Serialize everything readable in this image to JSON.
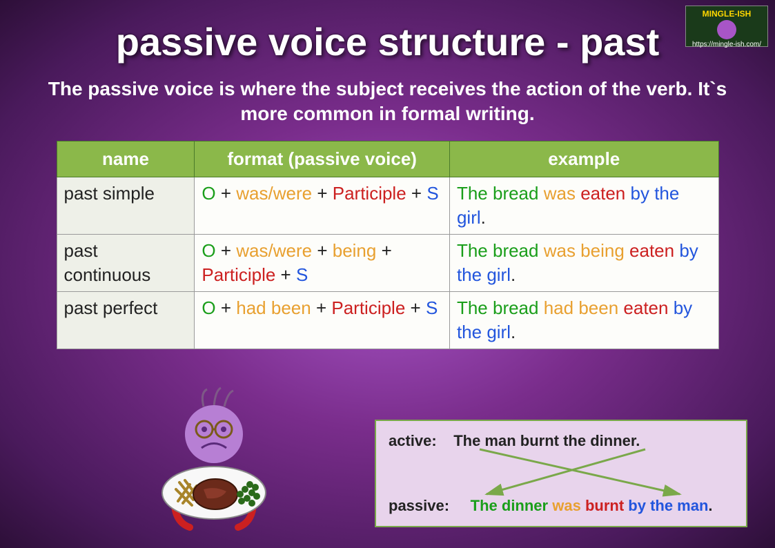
{
  "logo": {
    "brand": "MINGLE-ISH",
    "url": "https://mingle-ish.com/"
  },
  "title": "passive voice structure - past",
  "subtitle": "The passive voice is where the subject receives the action of the verb. It`s more common in formal writing.",
  "table": {
    "headers": [
      "name",
      "format (passive voice)",
      "example"
    ],
    "rows": [
      {
        "name": "past simple",
        "format": [
          {
            "t": "O",
            "c": "c-green"
          },
          {
            "t": " + ",
            "c": "c-black"
          },
          {
            "t": "was/were",
            "c": "c-orange"
          },
          {
            "t": " + ",
            "c": "c-black"
          },
          {
            "t": "Participle",
            "c": "c-red"
          },
          {
            "t": " + ",
            "c": "c-black"
          },
          {
            "t": "S",
            "c": "c-blue"
          }
        ],
        "example": [
          {
            "t": "The bread",
            "c": "c-green"
          },
          {
            "t": " ",
            "c": "c-black"
          },
          {
            "t": "was",
            "c": "c-orange"
          },
          {
            "t": " ",
            "c": "c-black"
          },
          {
            "t": "eaten",
            "c": "c-red"
          },
          {
            "t": " ",
            "c": "c-black"
          },
          {
            "t": "by the girl",
            "c": "c-blue"
          },
          {
            "t": ".",
            "c": "c-black"
          }
        ]
      },
      {
        "name": "past continuous",
        "format": [
          {
            "t": "O",
            "c": "c-green"
          },
          {
            "t": " + ",
            "c": "c-black"
          },
          {
            "t": "was/were",
            "c": "c-orange"
          },
          {
            "t": " + ",
            "c": "c-black"
          },
          {
            "t": "being",
            "c": "c-orange"
          },
          {
            "t": " + ",
            "c": "c-black"
          },
          {
            "t": "Participle",
            "c": "c-red"
          },
          {
            "t": " + ",
            "c": "c-black"
          },
          {
            "t": "S",
            "c": "c-blue"
          }
        ],
        "example": [
          {
            "t": "The bread",
            "c": "c-green"
          },
          {
            "t": " ",
            "c": "c-black"
          },
          {
            "t": "was being",
            "c": "c-orange"
          },
          {
            "t": " ",
            "c": "c-black"
          },
          {
            "t": "eaten",
            "c": "c-red"
          },
          {
            "t": " ",
            "c": "c-black"
          },
          {
            "t": "by the girl",
            "c": "c-blue"
          },
          {
            "t": ".",
            "c": "c-black"
          }
        ]
      },
      {
        "name": "past perfect",
        "format": [
          {
            "t": "O",
            "c": "c-green"
          },
          {
            "t": " + ",
            "c": "c-black"
          },
          {
            "t": "had been",
            "c": "c-orange"
          },
          {
            "t": " + ",
            "c": "c-black"
          },
          {
            "t": "Participle",
            "c": "c-red"
          },
          {
            "t": " + ",
            "c": "c-black"
          },
          {
            "t": "S",
            "c": "c-blue"
          }
        ],
        "example": [
          {
            "t": "The bread",
            "c": "c-green"
          },
          {
            "t": " ",
            "c": "c-black"
          },
          {
            "t": "had been",
            "c": "c-orange"
          },
          {
            "t": " ",
            "c": "c-black"
          },
          {
            "t": "eaten",
            "c": "c-red"
          },
          {
            "t": " ",
            "c": "c-black"
          },
          {
            "t": "by the girl",
            "c": "c-blue"
          },
          {
            "t": ".",
            "c": "c-black"
          }
        ]
      }
    ]
  },
  "exampleBox": {
    "activeLabel": "active:",
    "activeSentence": "The man burnt the dinner.",
    "passiveLabel": "passive:",
    "passiveParts": [
      {
        "t": "The dinner",
        "c": "c-green"
      },
      {
        "t": " ",
        "c": "c-black"
      },
      {
        "t": "was",
        "c": "c-orange"
      },
      {
        "t": " ",
        "c": "c-black"
      },
      {
        "t": "burnt",
        "c": "c-red"
      },
      {
        "t": " ",
        "c": "c-black"
      },
      {
        "t": "by the man",
        "c": "c-blue"
      },
      {
        "t": ".",
        "c": "c-black"
      }
    ],
    "arrowColor": "#7aa84a"
  },
  "colors": {
    "headerBg": "#8bb84a",
    "nameCellBg": "#eef0e8",
    "boxBg": "#e8d4ec",
    "boxBorder": "#7aa84a",
    "bgGradient": [
      "#a855c7",
      "#7a2d8c",
      "#4a1a5c",
      "#2d0f38"
    ]
  },
  "cartoon": {
    "faceColor": "#b77fd4",
    "glassesColor": "#7a5a1a",
    "plateColor": "#f8f8f8",
    "steakColor": "#6b2a1a",
    "peasColor": "#2a6a1a",
    "friesColor": "#a8842a",
    "armsColor": "#cc2020"
  }
}
